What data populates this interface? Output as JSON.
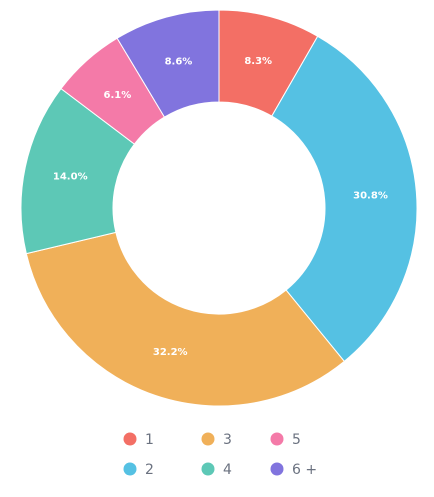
{
  "chart_data": {
    "type": "pie",
    "style": "donut",
    "slices": [
      {
        "label": "1",
        "value": 8.3,
        "value_label": "8.3%",
        "color": "#F36F65"
      },
      {
        "label": "2",
        "value": 30.8,
        "value_label": "30.8%",
        "color": "#55C1E3"
      },
      {
        "label": "3",
        "value": 32.2,
        "value_label": "32.2%",
        "color": "#F0B059"
      },
      {
        "label": "4",
        "value": 14.0,
        "value_label": "14.0%",
        "color": "#5DC8B6"
      },
      {
        "label": "5",
        "value": 6.1,
        "value_label": "6.1%",
        "color": "#F47AA8"
      },
      {
        "label": "6 +",
        "value": 8.6,
        "value_label": "8.6%",
        "color": "#8174DE"
      }
    ],
    "legend": {
      "placement": "bottom",
      "order": [
        "1",
        "3",
        "5",
        "2",
        "4",
        "6 +"
      ]
    }
  }
}
